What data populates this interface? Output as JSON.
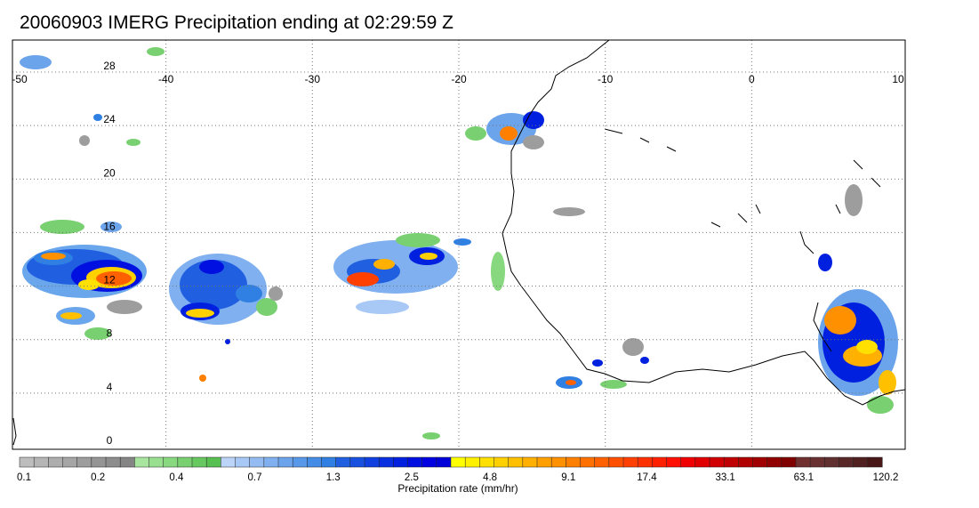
{
  "title": "20060903 IMERG Precipitation ending at 02:29:59 Z",
  "map": {
    "lon_range": [
      -50,
      10
    ],
    "lat_range": [
      -1,
      30
    ],
    "lon_ticks": [
      "-50",
      "-40",
      "-30",
      "-20",
      "-10",
      "0",
      "10"
    ],
    "lat_ticks": [
      "28",
      "24",
      "20",
      "16",
      "12",
      "8",
      "4",
      "0"
    ],
    "gridlines": "dotted",
    "coastline_color": "#000000"
  },
  "colorbar": {
    "label": "Precipitation rate (mm/hr)",
    "tick_labels": [
      "0.1",
      "0.2",
      "0.4",
      "0.7",
      "1.3",
      "2.5",
      "4.8",
      "9.1",
      "17.4",
      "33.1",
      "63.1",
      "120.2"
    ],
    "colors": [
      "#bdbdbd",
      "#b5b5b5",
      "#adadad",
      "#a5a5a5",
      "#9d9d9d",
      "#959595",
      "#8d8d8d",
      "#858585",
      "#a8e6a0",
      "#98e090",
      "#88d880",
      "#78d070",
      "#68c860",
      "#58c050",
      "#bcd4f8",
      "#a8c8f5",
      "#94bcf2",
      "#80b0ef",
      "#6ca4ec",
      "#5898e9",
      "#448ce6",
      "#3080e3",
      "#2060e0",
      "#1850e0",
      "#1040e0",
      "#0830e0",
      "#0020e0",
      "#0010e0",
      "#0000e0",
      "#0000d8",
      "#ffff00",
      "#fff000",
      "#ffe000",
      "#ffd000",
      "#ffc000",
      "#ffb000",
      "#ffa000",
      "#ff9000",
      "#ff8000",
      "#ff7000",
      "#ff6000",
      "#ff5000",
      "#ff4000",
      "#ff3000",
      "#ff2000",
      "#ff1000",
      "#f00000",
      "#e00000",
      "#d00000",
      "#c00000",
      "#b00000",
      "#a00000",
      "#900000",
      "#800000",
      "#703030",
      "#683030",
      "#603030",
      "#582828",
      "#502020",
      "#481818"
    ]
  }
}
